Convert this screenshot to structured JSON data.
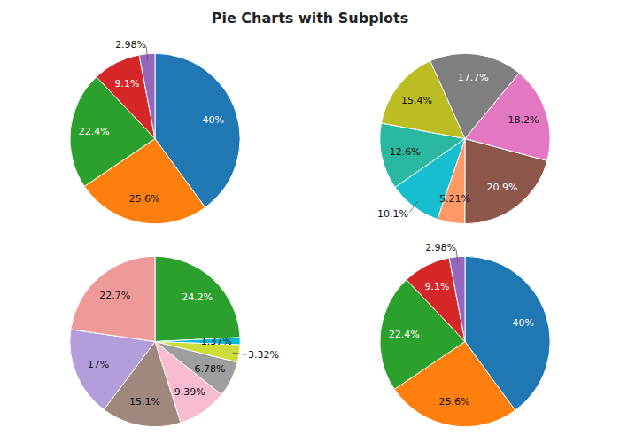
{
  "title": "Pie Charts with Subplots",
  "chart_data": [
    {
      "type": "pie",
      "values": [
        40,
        25.6,
        22.4,
        9.1,
        2.98
      ],
      "value_labels": [
        "40%",
        "25.6%",
        "22.4%",
        "9.1%",
        "2.98%"
      ],
      "colors": [
        "#1f77b4",
        "#ff7f0e",
        "#2ca02c",
        "#d62728",
        "#9467bd"
      ],
      "data_labels": true
    },
    {
      "type": "pie",
      "values": [
        20.9,
        5.21,
        10.1,
        12.6,
        15.4,
        17.7,
        18.2
      ],
      "value_labels": [
        "20.9%",
        "5.21%",
        "10.1%",
        "12.6%",
        "15.4%",
        "17.7%",
        "18.2%"
      ],
      "colors": [
        "#8c564b",
        "#ff9966",
        "#17becf",
        "#2ab8a0",
        "#bcbd22",
        "#7f7f7f",
        "#e377c2"
      ],
      "data_labels": true
    },
    {
      "type": "pie",
      "values": [
        24.2,
        1.37,
        3.32,
        6.78,
        9.39,
        15.1,
        17.0,
        22.7
      ],
      "value_labels": [
        "24.2%",
        "1.37%",
        "3.32%",
        "6.78%",
        "9.39%",
        "15.1%",
        "17%",
        "22.7%"
      ],
      "colors": [
        "#2ca02c",
        "#00bcd4",
        "#cddc39",
        "#9e9e9e",
        "#f8bbd0",
        "#a1887f",
        "#b39ddb",
        "#ef9a9a"
      ],
      "data_labels": true
    },
    {
      "type": "pie",
      "values": [
        40,
        25.6,
        22.4,
        9.1,
        2.98
      ],
      "value_labels": [
        "40%",
        "25.6%",
        "22.4%",
        "9.1%",
        "2.98%"
      ],
      "colors": [
        "#1f77b4",
        "#ff7f0e",
        "#2ca02c",
        "#d62728",
        "#9467bd"
      ],
      "data_labels": true
    }
  ]
}
